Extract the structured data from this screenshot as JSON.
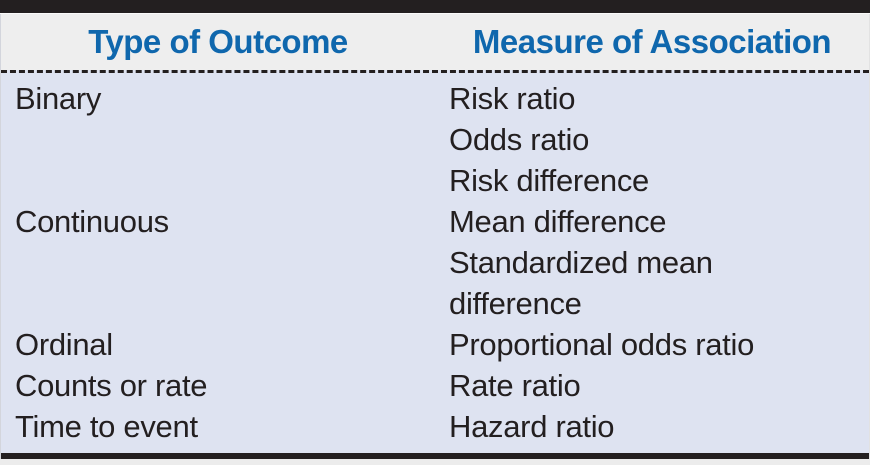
{
  "table": {
    "headers": {
      "outcome": "Type of Outcome",
      "measure": "Measure of Association"
    },
    "rows": [
      {
        "outcome": "Binary",
        "measures": [
          "Risk ratio",
          "Odds ratio",
          "Risk difference"
        ]
      },
      {
        "outcome": "Continuous",
        "measures": [
          "Mean difference",
          "Standardized mean difference"
        ]
      },
      {
        "outcome": "Ordinal",
        "measures": [
          "Proportional odds ratio"
        ]
      },
      {
        "outcome": "Counts or rate",
        "measures": [
          "Rate ratio"
        ]
      },
      {
        "outcome": "Time to event",
        "measures": [
          "Hazard ratio"
        ]
      }
    ],
    "colors": {
      "header_text": "#0f67ad",
      "header_bg": "#eeeeee",
      "body_bg": "#dee3f1",
      "bar": "#231f20",
      "text": "#231f20"
    }
  }
}
